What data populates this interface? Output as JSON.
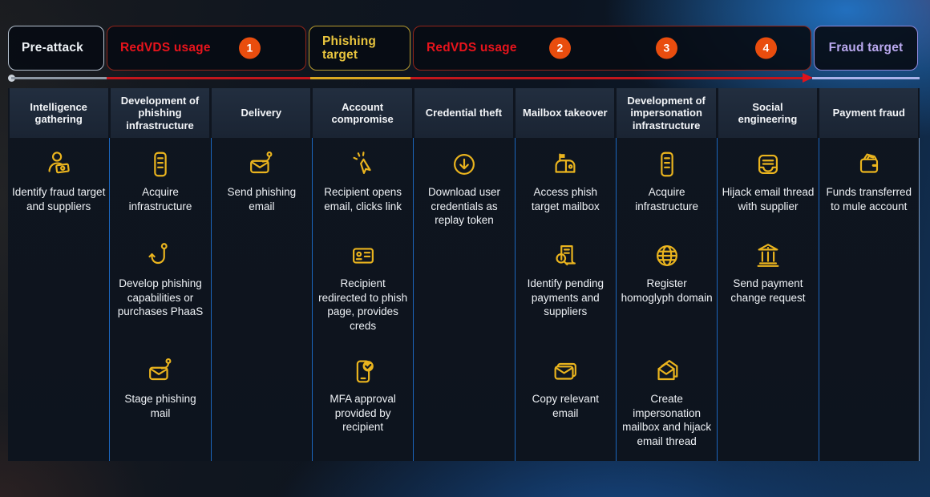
{
  "pills": [
    {
      "id": "pre-attack",
      "label": "Pre-attack",
      "text_color": "#eef2f6",
      "border_color": "#b6c2d0",
      "badges": []
    },
    {
      "id": "redvds-1",
      "label": "RedVDS usage",
      "text_color": "#e8141c",
      "border_color": "#93251a",
      "badges": [
        {
          "num": "1"
        }
      ]
    },
    {
      "id": "phishing-target",
      "label": "Phishing target",
      "text_color": "#e9c53e",
      "border_color": "#b79b2f",
      "badges": []
    },
    {
      "id": "redvds-2",
      "label": "RedVDS usage",
      "text_color": "#e8141c",
      "border_color": "#93251a",
      "badges": [
        {
          "num": "2"
        },
        {
          "num": "3"
        },
        {
          "num": "4"
        }
      ]
    },
    {
      "id": "fraud-target",
      "label": "Fraud target",
      "text_color": "#b9a8ee",
      "border_color": "#8f88da",
      "badges": []
    }
  ],
  "timeline_colors": {
    "dot": "#ccd3db",
    "gray": "#8e98a4",
    "red": "#c3161c",
    "yellow": "#d9a722",
    "arrow": "#e0131c",
    "lavender": "#aab2ea"
  },
  "badge_color": "#e94d0e",
  "icon_color": "#eab41e",
  "columns": [
    {
      "header": "Intelligence gathering",
      "items": [
        {
          "icon": "person-money-icon",
          "label": "Identify fraud target and suppliers",
          "slot": 0
        }
      ]
    },
    {
      "header": "Development of phishing infrastructure",
      "items": [
        {
          "icon": "server-icon",
          "label": "Acquire infrastructure",
          "slot": 0
        },
        {
          "icon": "fish-hook-icon",
          "label": "Develop phishing capabilities or purchases PhaaS",
          "slot": 1
        },
        {
          "icon": "envelope-hook-icon",
          "label": "Stage phishing mail",
          "slot": 2
        }
      ]
    },
    {
      "header": "Delivery",
      "items": [
        {
          "icon": "envelope-hook-icon",
          "label": "Send phishing email",
          "slot": 0
        }
      ]
    },
    {
      "header": "Account compromise",
      "items": [
        {
          "icon": "cursor-click-icon",
          "label": "Recipient opens email, clicks link",
          "slot": 0
        },
        {
          "icon": "id-card-icon",
          "label": "Recipient redirected to phish page, provides creds",
          "slot": 1
        },
        {
          "icon": "phone-check-icon",
          "label": "MFA approval provided by recipient",
          "slot": 2
        }
      ]
    },
    {
      "header": "Credential theft",
      "items": [
        {
          "icon": "download-circle-icon",
          "label": "Download user credentials as replay token",
          "slot": 0
        }
      ]
    },
    {
      "header": "Mailbox takeover",
      "items": [
        {
          "icon": "mailbox-icon",
          "label": "Access phish target mailbox",
          "slot": 0
        },
        {
          "icon": "document-search-icon",
          "label": "Identify pending payments and suppliers",
          "slot": 1
        },
        {
          "icon": "envelope-copy-icon",
          "label": "Copy relevant email",
          "slot": 2
        }
      ]
    },
    {
      "header": "Development of impersonation infrastructure",
      "items": [
        {
          "icon": "server-icon",
          "label": "Acquire infrastructure",
          "slot": 0
        },
        {
          "icon": "globe-icon",
          "label": "Register homoglyph domain",
          "slot": 1
        },
        {
          "icon": "envelope-open-copy-icon",
          "label": "Create impersonation mailbox and hijack email thread",
          "slot": 2
        }
      ]
    },
    {
      "header": "Social engineering",
      "items": [
        {
          "icon": "email-thread-icon",
          "label": "Hijack email thread with supplier",
          "slot": 0
        },
        {
          "icon": "bank-icon",
          "label": "Send payment change request",
          "slot": 1
        }
      ]
    },
    {
      "header": "Payment fraud",
      "items": [
        {
          "icon": "wallet-icon",
          "label": "Funds transferred to mule account",
          "slot": 0
        }
      ]
    }
  ]
}
